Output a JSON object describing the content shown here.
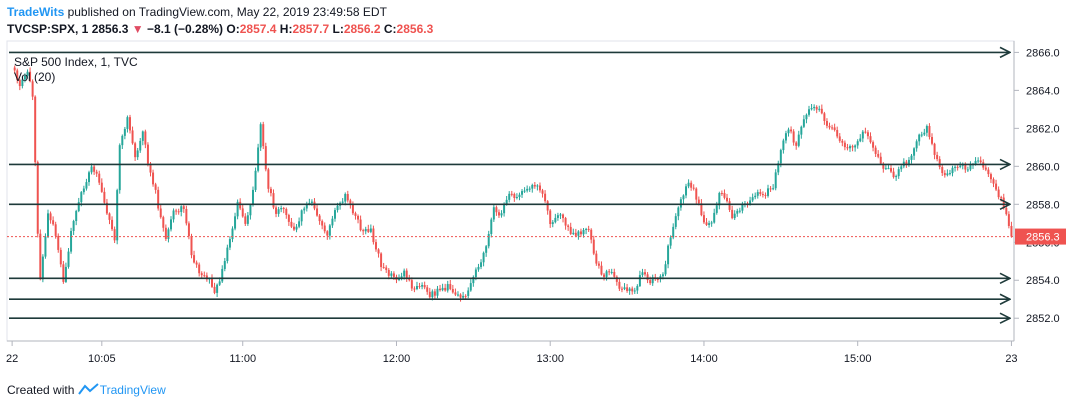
{
  "header": {
    "publisher": "TradeWits",
    "published_text": " published on TradingView.com, May 22, 2019 23:49:58 EDT",
    "symbol": "TVCSP:SPX, 1",
    "last": "2856.3",
    "change": "−8.1 (−0.28%)",
    "o_label": "O:",
    "o_value": "2857.4",
    "h_label": "H:",
    "h_value": "2857.7",
    "l_label": "L:",
    "l_value": "2856.2",
    "c_label": "C:",
    "c_value": "2856.3"
  },
  "legend": {
    "title": "S&P 500 Index, 1, TVC",
    "vol": "Vol (20)"
  },
  "footer": {
    "created_with": "Created with",
    "brand": "TradingView"
  },
  "colors": {
    "up": "#26a69a",
    "down": "#ef5350",
    "line": "#1e3a3a",
    "price_label": "#ef5350",
    "axis_text": "#131722",
    "grid": "#e0e3eb"
  },
  "chart_data": {
    "type": "candlestick",
    "title": "S&P 500 Index, 1, TVC",
    "y_ticks": [
      2852.0,
      2854.0,
      2856.0,
      2858.0,
      2860.0,
      2862.0,
      2864.0,
      2866.0
    ],
    "y_tick_labels": [
      "2852.0",
      "2854.0",
      "2856.0",
      "2858.0",
      "2860.0",
      "2862.0",
      "2864.0",
      "2866.0"
    ],
    "ylim": [
      2850.8,
      2866.6
    ],
    "x_ticks": [
      "22",
      "10:05",
      "11:00",
      "12:00",
      "13:00",
      "14:00",
      "15:00",
      "23"
    ],
    "x_tick_minutes": [
      570,
      605,
      660,
      720,
      780,
      840,
      900,
      960
    ],
    "xlim": [
      568,
      961
    ],
    "current_price": 2856.3,
    "current_price_label": "2856.3",
    "horizontal_levels": [
      2866.0,
      2860.1,
      2858.0,
      2854.1,
      2853.0,
      2852.0
    ],
    "path": [
      [
        570,
        2865.2
      ],
      [
        573,
        2864.3
      ],
      [
        576,
        2865.0
      ],
      [
        578,
        2863.8
      ],
      [
        580,
        2856.5
      ],
      [
        581,
        2854.1
      ],
      [
        584,
        2857.6
      ],
      [
        587,
        2856.4
      ],
      [
        590,
        2853.8
      ],
      [
        593,
        2856.5
      ],
      [
        597,
        2858.5
      ],
      [
        601,
        2860.0
      ],
      [
        604,
        2859.2
      ],
      [
        607,
        2857.6
      ],
      [
        610,
        2856.2
      ],
      [
        612,
        2861.0
      ],
      [
        615,
        2862.6
      ],
      [
        618,
        2860.5
      ],
      [
        621,
        2862.0
      ],
      [
        623,
        2860.3
      ],
      [
        626,
        2858.6
      ],
      [
        628,
        2857.2
      ],
      [
        630,
        2856.1
      ],
      [
        633,
        2857.5
      ],
      [
        637,
        2857.9
      ],
      [
        640,
        2855.4
      ],
      [
        643,
        2854.4
      ],
      [
        647,
        2854.0
      ],
      [
        649,
        2853.3
      ],
      [
        652,
        2854.5
      ],
      [
        655,
        2856.1
      ],
      [
        658,
        2858.0
      ],
      [
        661,
        2856.9
      ],
      [
        664,
        2858.7
      ],
      [
        667,
        2862.1
      ],
      [
        670,
        2858.9
      ],
      [
        673,
        2857.5
      ],
      [
        676,
        2857.8
      ],
      [
        680,
        2856.5
      ],
      [
        684,
        2857.9
      ],
      [
        687,
        2858.2
      ],
      [
        690,
        2857.1
      ],
      [
        693,
        2856.4
      ],
      [
        697,
        2857.9
      ],
      [
        700,
        2858.4
      ],
      [
        703,
        2857.6
      ],
      [
        707,
        2856.5
      ],
      [
        710,
        2856.6
      ],
      [
        714,
        2854.8
      ],
      [
        717,
        2854.4
      ],
      [
        720,
        2853.9
      ],
      [
        723,
        2854.4
      ],
      [
        727,
        2853.5
      ],
      [
        730,
        2853.8
      ],
      [
        733,
        2853.2
      ],
      [
        736,
        2853.4
      ],
      [
        740,
        2853.7
      ],
      [
        743,
        2853.1
      ],
      [
        747,
        2853.2
      ],
      [
        750,
        2854.2
      ],
      [
        754,
        2855.3
      ],
      [
        758,
        2857.8
      ],
      [
        761,
        2857.4
      ],
      [
        764,
        2858.7
      ],
      [
        767,
        2858.4
      ],
      [
        770,
        2858.6
      ],
      [
        774,
        2859.1
      ],
      [
        777,
        2858.7
      ],
      [
        780,
        2857.1
      ],
      [
        784,
        2857.5
      ],
      [
        788,
        2856.6
      ],
      [
        791,
        2856.4
      ],
      [
        795,
        2856.6
      ],
      [
        798,
        2855.0
      ],
      [
        801,
        2854.2
      ],
      [
        804,
        2854.5
      ],
      [
        807,
        2853.6
      ],
      [
        810,
        2853.4
      ],
      [
        813,
        2853.5
      ],
      [
        816,
        2854.5
      ],
      [
        819,
        2853.8
      ],
      [
        821,
        2854.2
      ],
      [
        824,
        2854.3
      ],
      [
        827,
        2856.4
      ],
      [
        831,
        2858.2
      ],
      [
        834,
        2859.3
      ],
      [
        837,
        2858.4
      ],
      [
        840,
        2857.0
      ],
      [
        843,
        2857.1
      ],
      [
        846,
        2858.5
      ],
      [
        849,
        2858.3
      ],
      [
        851,
        2857.2
      ],
      [
        855,
        2858.0
      ],
      [
        858,
        2858.2
      ],
      [
        861,
        2858.6
      ],
      [
        864,
        2858.5
      ],
      [
        867,
        2859.0
      ],
      [
        870,
        2861.0
      ],
      [
        873,
        2862.0
      ],
      [
        876,
        2861.1
      ],
      [
        879,
        2862.6
      ],
      [
        882,
        2863.2
      ],
      [
        885,
        2863.1
      ],
      [
        888,
        2862.2
      ],
      [
        891,
        2861.9
      ],
      [
        894,
        2861.1
      ],
      [
        897,
        2861.0
      ],
      [
        900,
        2861.4
      ],
      [
        903,
        2861.9
      ],
      [
        906,
        2861.0
      ],
      [
        909,
        2860.0
      ],
      [
        912,
        2859.8
      ],
      [
        915,
        2859.5
      ],
      [
        918,
        2860.1
      ],
      [
        921,
        2860.4
      ],
      [
        924,
        2861.7
      ],
      [
        927,
        2862.0
      ],
      [
        930,
        2860.6
      ],
      [
        933,
        2859.6
      ],
      [
        937,
        2859.8
      ],
      [
        940,
        2860.0
      ],
      [
        943,
        2859.8
      ],
      [
        946,
        2860.4
      ],
      [
        950,
        2859.8
      ],
      [
        953,
        2859.0
      ],
      [
        956,
        2858.2
      ],
      [
        958,
        2857.6
      ],
      [
        960,
        2856.3
      ]
    ]
  }
}
